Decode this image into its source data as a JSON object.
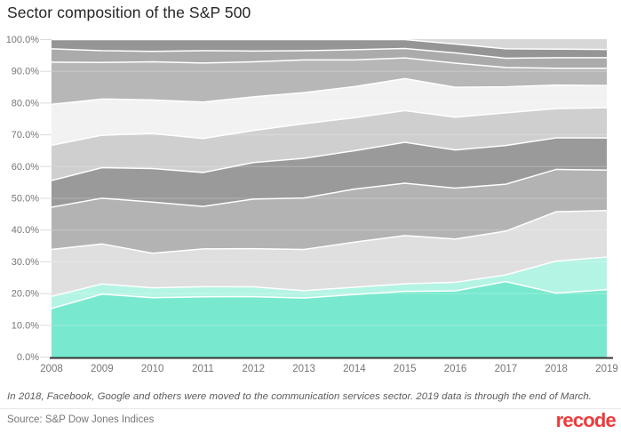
{
  "title": "Sector composition of the S&P 500",
  "footnote": "In 2018, Facebook, Google and others were moved to the communication services sector. 2019 data is through the end of March.",
  "source": "Source: S&P Dow Jones Indices",
  "brand": "recode",
  "ui_colors": {
    "brand_red": "#ee3a3a",
    "title_text": "#262626",
    "axis_text": "#767676",
    "footnote_text": "#5c5c5c",
    "axis_line": "#333333",
    "gridline": "#dbdbdb",
    "band_separator": "#ffffff",
    "background": "#ffffff"
  },
  "chart_data": {
    "type": "area",
    "stacked": true,
    "title": "Sector composition of the S&P 500",
    "xlabel": "",
    "ylabel": "",
    "legend": "none",
    "grid": true,
    "unit": "%",
    "ylim": [
      0,
      100
    ],
    "x": [
      2008,
      2009,
      2010,
      2011,
      2012,
      2013,
      2014,
      2015,
      2016,
      2017,
      2018,
      2019
    ],
    "xtick_labels": [
      "2008",
      "2009",
      "2010",
      "2011",
      "2012",
      "2013",
      "2014",
      "2015",
      "2016",
      "2017",
      "2018",
      "2019"
    ],
    "ytick_labels": [
      "0.0%",
      "10.0%",
      "20.0%",
      "30.0%",
      "40.0%",
      "50.0%",
      "60.0%",
      "70.0%",
      "80.0%",
      "90.0%",
      "100.0%"
    ],
    "stack_order": "bottom-to-top",
    "series": [
      {
        "name": "teal",
        "color": "#78e9ce",
        "values": [
          15.3,
          19.8,
          18.7,
          19.0,
          19.0,
          18.6,
          19.7,
          20.7,
          20.8,
          23.8,
          20.1,
          21.2
        ]
      },
      {
        "name": "light-teal",
        "color": "#b4f4e4",
        "values": [
          3.8,
          3.2,
          3.1,
          3.2,
          3.1,
          2.3,
          2.3,
          2.4,
          2.7,
          2.1,
          10.1,
          10.2
        ]
      },
      {
        "name": "gray-1",
        "color": "#dfdfdf",
        "values": [
          14.8,
          12.6,
          10.9,
          11.9,
          12.0,
          13.0,
          14.2,
          15.2,
          13.6,
          13.8,
          15.5,
          14.6
        ]
      },
      {
        "name": "gray-2",
        "color": "#b3b3b3",
        "values": [
          13.3,
          14.4,
          16.1,
          13.4,
          15.6,
          16.2,
          16.7,
          16.5,
          16.0,
          14.8,
          13.3,
          12.7
        ]
      },
      {
        "name": "gray-3",
        "color": "#9a9a9a",
        "values": [
          8.4,
          9.6,
          10.6,
          10.7,
          11.5,
          12.5,
          12.1,
          12.9,
          12.0,
          12.2,
          9.9,
          10.1
        ]
      },
      {
        "name": "gray-4",
        "color": "#cfcfcf",
        "values": [
          11.1,
          10.2,
          11.0,
          10.7,
          10.1,
          10.9,
          10.4,
          10.0,
          10.3,
          10.3,
          9.2,
          9.5
        ]
      },
      {
        "name": "gray-5",
        "color": "#f2f2f2",
        "values": [
          12.9,
          11.4,
          10.6,
          11.5,
          10.6,
          9.8,
          9.8,
          10.1,
          9.4,
          8.2,
          7.4,
          7.0
        ]
      },
      {
        "name": "gray-6",
        "color": "#b7b7b7",
        "values": [
          13.3,
          11.5,
          12.0,
          12.3,
          11.0,
          10.3,
          8.4,
          6.5,
          7.6,
          6.1,
          5.3,
          5.4
        ]
      },
      {
        "name": "gray-7",
        "color": "#ababab",
        "values": [
          4.2,
          3.7,
          3.3,
          3.9,
          3.4,
          2.9,
          3.2,
          3.0,
          3.2,
          2.9,
          3.3,
          3.3
        ]
      },
      {
        "name": "gray-8",
        "color": "#959595",
        "values": [
          2.9,
          3.5,
          3.7,
          3.5,
          3.6,
          3.5,
          3.2,
          2.8,
          2.8,
          3.0,
          2.7,
          2.6
        ]
      },
      {
        "name": "gray-9",
        "color": "#d7d7d7",
        "values": [
          0,
          0,
          0,
          0,
          0,
          0,
          0,
          0,
          1.4,
          2.9,
          3.0,
          3.1
        ]
      }
    ]
  }
}
